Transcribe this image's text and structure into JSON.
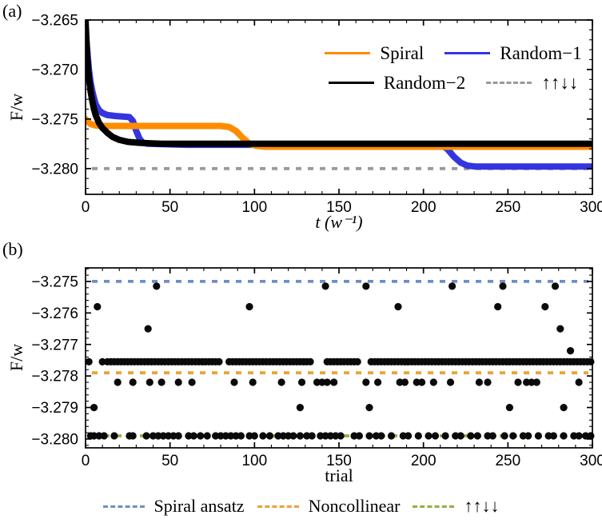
{
  "figure": {
    "panel_a_label": "(a)",
    "panel_b_label": "(b)"
  },
  "chart_data": [
    {
      "panel": "a",
      "type": "line",
      "xlabel": "t (w⁻¹)",
      "ylabel": "F/w",
      "xlim": [
        0,
        300
      ],
      "ylim": [
        -3.2826,
        -3.265
      ],
      "grid": false,
      "xticks": {
        "values": [
          0,
          50,
          100,
          150,
          200,
          250,
          300
        ],
        "labels": [
          "0",
          "50",
          "100",
          "150",
          "200",
          "250",
          "300"
        ],
        "minor_step": 10
      },
      "yticks": {
        "values": [
          -3.265,
          -3.27,
          -3.275,
          -3.28
        ],
        "labels": [
          "−3.265",
          "−3.270",
          "−3.275",
          "−3.280"
        ],
        "minor_step": 0.001
      },
      "legend": {
        "position": "top-right-inside",
        "rows": [
          [
            {
              "label": "Spiral",
              "color": "#FF8C00",
              "dashed": false
            },
            {
              "label": "Random−1",
              "color": "#3535E0",
              "dashed": false
            }
          ],
          [
            {
              "label": "Random−2",
              "color": "#000000",
              "dashed": false
            },
            {
              "label": "↑↑↓↓",
              "color": "#9A9A9A",
              "dashed": true
            }
          ]
        ]
      },
      "reference_lines": [
        {
          "label": "↑↑↓↓",
          "value": -3.28,
          "color": "#9A9A9A"
        }
      ],
      "series": [
        {
          "name": "Random−1",
          "color": "#3535E0",
          "points": [
            [
              0,
              -3.266
            ],
            [
              1,
              -3.268
            ],
            [
              2,
              -3.27
            ],
            [
              3,
              -3.2713
            ],
            [
              4,
              -3.2722
            ],
            [
              5,
              -3.2729
            ],
            [
              6,
              -3.2735
            ],
            [
              8,
              -3.2741
            ],
            [
              10,
              -3.2744
            ],
            [
              13,
              -3.2746
            ],
            [
              18,
              -3.2747
            ],
            [
              26,
              -3.2748
            ],
            [
              28,
              -3.2752
            ],
            [
              30,
              -3.2762
            ],
            [
              32,
              -3.277
            ],
            [
              34,
              -3.2774
            ],
            [
              37,
              -3.2775
            ],
            [
              60,
              -3.2776
            ],
            [
              210,
              -3.2776
            ],
            [
              214,
              -3.278
            ],
            [
              218,
              -3.2788
            ],
            [
              222,
              -3.2794
            ],
            [
              226,
              -3.2797
            ],
            [
              231,
              -3.2798
            ],
            [
              300,
              -3.2798
            ]
          ]
        },
        {
          "name": "Spiral",
          "color": "#FF8C00",
          "points": [
            [
              0,
              -3.275
            ],
            [
              1,
              -3.2752
            ],
            [
              3,
              -3.2755
            ],
            [
              6,
              -3.27565
            ],
            [
              10,
              -3.2757
            ],
            [
              80,
              -3.2757
            ],
            [
              85,
              -3.2758
            ],
            [
              89,
              -3.2762
            ],
            [
              93,
              -3.2769
            ],
            [
              97,
              -3.2775
            ],
            [
              101,
              -3.2777
            ],
            [
              106,
              -3.2778
            ],
            [
              300,
              -3.2778
            ]
          ]
        },
        {
          "name": "Random−2",
          "color": "#000000",
          "points": [
            [
              0,
              -3.265
            ],
            [
              1,
              -3.2688
            ],
            [
              2,
              -3.2708
            ],
            [
              3,
              -3.2722
            ],
            [
              4,
              -3.2732
            ],
            [
              5,
              -3.274
            ],
            [
              6,
              -3.2746
            ],
            [
              8,
              -3.2754
            ],
            [
              10,
              -3.2759
            ],
            [
              13,
              -3.2764
            ],
            [
              16,
              -3.2768
            ],
            [
              20,
              -3.2771
            ],
            [
              25,
              -3.2773
            ],
            [
              32,
              -3.2774
            ],
            [
              45,
              -3.2775
            ],
            [
              300,
              -3.2775
            ]
          ]
        }
      ]
    },
    {
      "panel": "b",
      "type": "scatter",
      "xlabel": "trial",
      "ylabel": "F/w",
      "xlim": [
        0,
        300
      ],
      "ylim": [
        -3.28028,
        -3.27457
      ],
      "grid": false,
      "point_color": "#0a0a0a",
      "point_radius": 4.6,
      "xticks": {
        "values": [
          0,
          50,
          100,
          150,
          200,
          250,
          300
        ],
        "labels": [
          "0",
          "50",
          "100",
          "150",
          "200",
          "250",
          "300"
        ],
        "minor_step": 10
      },
      "yticks": {
        "values": [
          -3.275,
          -3.276,
          -3.277,
          -3.278,
          -3.279,
          -3.28
        ],
        "labels": [
          "−3.275",
          "−3.276",
          "−3.277",
          "−3.278",
          "−3.279",
          "−3.280"
        ],
        "minor_step": 0.0002
      },
      "reference_lines": [
        {
          "label": "Spiral ansatz",
          "value": -3.275,
          "color": "#6E8FC4"
        },
        {
          "label": "Noncollinear",
          "value": -3.2779,
          "color": "#E9A33B"
        },
        {
          "label": "↑↑↓↓",
          "value": -3.2799,
          "color": "#90B13B"
        }
      ],
      "levels": [
        {
          "F_over_w": -3.27515,
          "trials": [
            42,
            142,
            166,
            217,
            247,
            278
          ]
        },
        {
          "F_over_w": -3.2758,
          "trials": [
            7,
            97,
            185,
            244,
            272
          ]
        },
        {
          "F_over_w": -3.2765,
          "trials": [
            37,
            281
          ]
        },
        {
          "F_over_w": -3.2772,
          "trials": [
            287
          ]
        },
        {
          "F_over_w": -3.27755,
          "trials": [
            2,
            10,
            13,
            15,
            17,
            19,
            21,
            23,
            25,
            27,
            29,
            31,
            33,
            35,
            37,
            39,
            41,
            43,
            45,
            47,
            49,
            51,
            53,
            55,
            57,
            59,
            61,
            63,
            65,
            67,
            69,
            71,
            73,
            75,
            77,
            79,
            85,
            87,
            89,
            91,
            93,
            95,
            97,
            99,
            101,
            103,
            105,
            107,
            109,
            111,
            113,
            115,
            117,
            119,
            121,
            123,
            125,
            127,
            129,
            131,
            133,
            143,
            145,
            147,
            149,
            151,
            153,
            155,
            157,
            159,
            161,
            169,
            171,
            173,
            175,
            177,
            179,
            181,
            183,
            185,
            187,
            189,
            191,
            193,
            195,
            197,
            199,
            201,
            203,
            205,
            207,
            209,
            211,
            213,
            215,
            217,
            219,
            221,
            223,
            225,
            227,
            229,
            231,
            233,
            235,
            237,
            239,
            241,
            243,
            245,
            247,
            249,
            251,
            253,
            255,
            257,
            259,
            261,
            263,
            265,
            267,
            269,
            271,
            273,
            275,
            277,
            279,
            281,
            283,
            285,
            287,
            289,
            291,
            293,
            295,
            297,
            299
          ]
        },
        {
          "F_over_w": -3.2782,
          "trials": [
            19,
            28,
            38,
            45,
            55,
            63,
            88,
            99,
            116,
            128,
            137,
            140,
            143,
            147,
            166,
            173,
            186,
            189,
            196,
            199,
            206,
            216,
            233,
            238,
            256,
            261,
            264,
            267,
            292
          ]
        },
        {
          "F_over_w": -3.279,
          "trials": [
            5,
            127,
            168,
            251,
            283
          ]
        },
        {
          "F_over_w": -3.2799,
          "trials": [
            3,
            5,
            8,
            11,
            17,
            26,
            28,
            36,
            40,
            43,
            46,
            49,
            52,
            55,
            61,
            64,
            68,
            72,
            77,
            80,
            83,
            86,
            89,
            92,
            97,
            100,
            105,
            109,
            114,
            117,
            120,
            123,
            127,
            131,
            134,
            139,
            142,
            145,
            148,
            151,
            159,
            162,
            168,
            172,
            175,
            181,
            188,
            191,
            197,
            203,
            207,
            213,
            219,
            222,
            228,
            232,
            238,
            241,
            248,
            253,
            259,
            262,
            268,
            274,
            277,
            283,
            289,
            292,
            296,
            299
          ]
        }
      ]
    }
  ]
}
